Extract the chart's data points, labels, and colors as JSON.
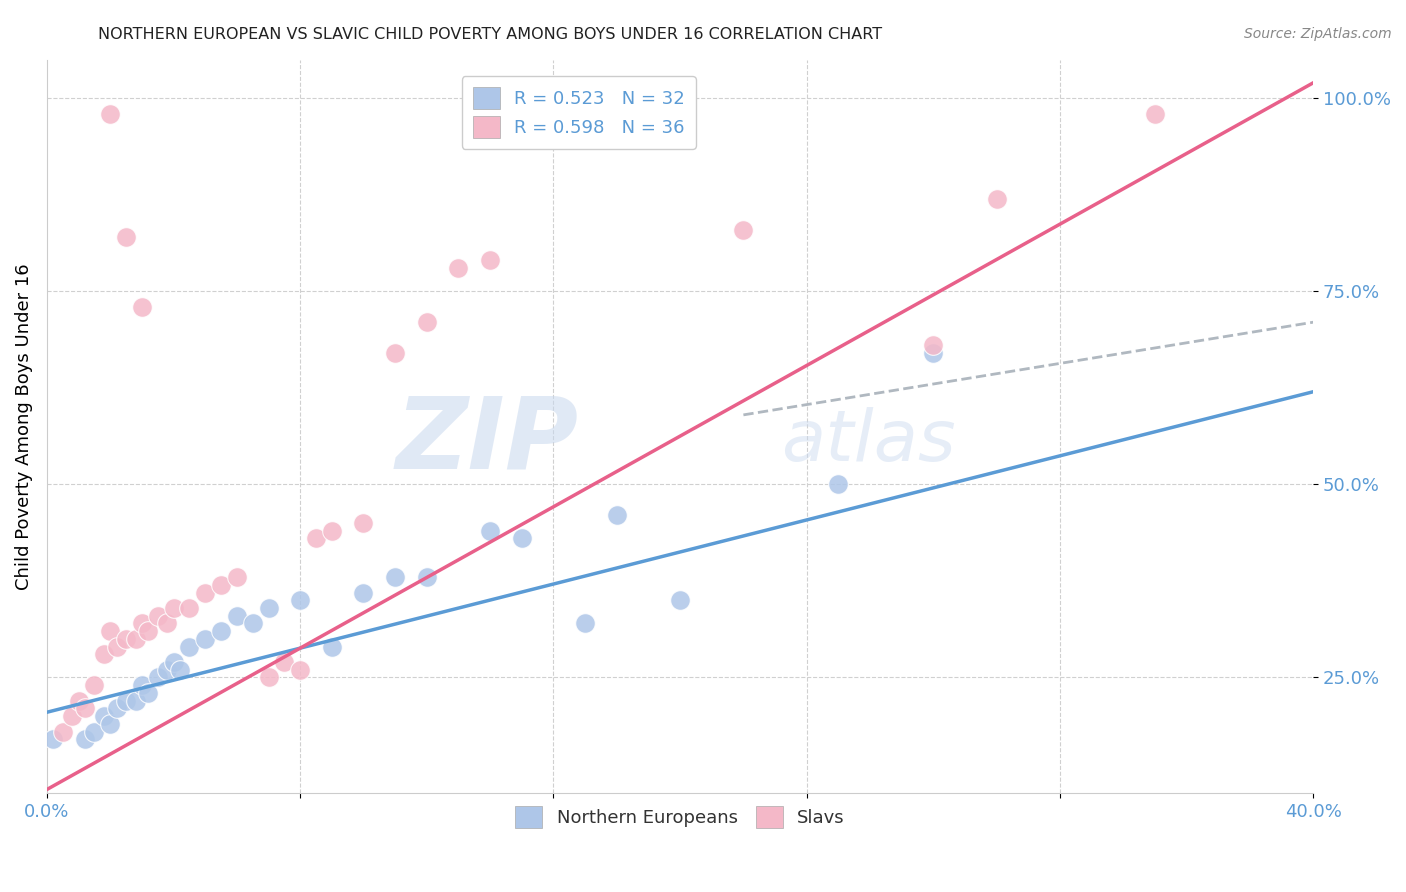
{
  "title": "NORTHERN EUROPEAN VS SLAVIC CHILD POVERTY AMONG BOYS UNDER 16 CORRELATION CHART",
  "source": "Source: ZipAtlas.com",
  "ylabel": "Child Poverty Among Boys Under 16",
  "watermark_zip": "ZIP",
  "watermark_atlas": "atlas",
  "blue_color": "#aec6e8",
  "pink_color": "#f4b8c8",
  "blue_line_color": "#5b9bd5",
  "pink_line_color": "#e8608a",
  "dashed_line_color": "#b0b8c0",
  "tick_color": "#5b9bd5",
  "title_color": "#222222",
  "r_blue": 0.523,
  "n_blue": 32,
  "r_pink": 0.598,
  "n_pink": 36,
  "blue_points": [
    [
      0.2,
      17
    ],
    [
      1.2,
      17
    ],
    [
      1.5,
      18
    ],
    [
      1.8,
      20
    ],
    [
      2.0,
      19
    ],
    [
      2.2,
      21
    ],
    [
      2.5,
      22
    ],
    [
      2.8,
      22
    ],
    [
      3.0,
      24
    ],
    [
      3.2,
      23
    ],
    [
      3.5,
      25
    ],
    [
      3.8,
      26
    ],
    [
      4.0,
      27
    ],
    [
      4.2,
      26
    ],
    [
      4.5,
      29
    ],
    [
      5.0,
      30
    ],
    [
      5.5,
      31
    ],
    [
      6.0,
      33
    ],
    [
      6.5,
      32
    ],
    [
      7.0,
      34
    ],
    [
      8.0,
      35
    ],
    [
      9.0,
      29
    ],
    [
      10.0,
      36
    ],
    [
      11.0,
      38
    ],
    [
      12.0,
      38
    ],
    [
      14.0,
      44
    ],
    [
      15.0,
      43
    ],
    [
      17.0,
      32
    ],
    [
      18.0,
      46
    ],
    [
      20.0,
      35
    ],
    [
      25.0,
      50
    ],
    [
      28.0,
      67
    ]
  ],
  "pink_points": [
    [
      0.5,
      18
    ],
    [
      0.8,
      20
    ],
    [
      1.0,
      22
    ],
    [
      1.2,
      21
    ],
    [
      1.5,
      24
    ],
    [
      1.8,
      28
    ],
    [
      2.0,
      31
    ],
    [
      2.2,
      29
    ],
    [
      2.5,
      30
    ],
    [
      2.8,
      30
    ],
    [
      3.0,
      32
    ],
    [
      3.2,
      31
    ],
    [
      3.5,
      33
    ],
    [
      3.8,
      32
    ],
    [
      4.0,
      34
    ],
    [
      4.5,
      34
    ],
    [
      5.0,
      36
    ],
    [
      5.5,
      37
    ],
    [
      6.0,
      38
    ],
    [
      7.0,
      25
    ],
    [
      7.5,
      27
    ],
    [
      8.0,
      26
    ],
    [
      8.5,
      43
    ],
    [
      9.0,
      44
    ],
    [
      10.0,
      45
    ],
    [
      11.0,
      67
    ],
    [
      12.0,
      71
    ],
    [
      13.0,
      78
    ],
    [
      14.0,
      79
    ],
    [
      2.5,
      82
    ],
    [
      3.0,
      73
    ],
    [
      22.0,
      83
    ],
    [
      30.0,
      87
    ],
    [
      35.0,
      98
    ],
    [
      2.0,
      98
    ],
    [
      28.0,
      68
    ]
  ],
  "xlim": [
    0.0,
    40.0
  ],
  "ylim": [
    10.0,
    105.0
  ],
  "yticks": [
    25.0,
    50.0,
    75.0,
    100.0
  ],
  "xtick_positions": [
    0.0,
    8.0,
    16.0,
    24.0,
    32.0,
    40.0
  ],
  "blue_line": [
    [
      0,
      20.5
    ],
    [
      40,
      62.0
    ]
  ],
  "pink_line": [
    [
      0,
      10.5
    ],
    [
      40,
      102.0
    ]
  ],
  "dash_line": [
    [
      22,
      59
    ],
    [
      40,
      71
    ]
  ]
}
